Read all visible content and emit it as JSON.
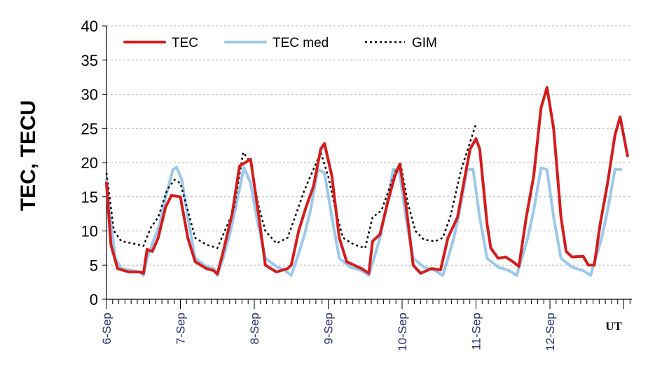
{
  "chart_data": {
    "type": "line",
    "title": "",
    "ylabel": "TEC, TECU",
    "xlabel": "UT",
    "ylim": [
      0,
      40
    ],
    "yticks": [
      0,
      5,
      10,
      15,
      20,
      25,
      30,
      35,
      40
    ],
    "x_unit": "days from 6-Sep 00 UT",
    "xlim": [
      0,
      7
    ],
    "categories": [
      "6-Sep",
      "7-Sep",
      "8-Sep",
      "9-Sep",
      "10-Sep",
      "11-Sep",
      "12-Sep"
    ],
    "grid": "horizontal dashed",
    "legend_position": "top-left",
    "series": [
      {
        "name": "TEC",
        "color": "#d41c1c",
        "style": "solid",
        "points": [
          [
            0,
            17
          ],
          [
            0.06,
            8
          ],
          [
            0.15,
            4.5
          ],
          [
            0.3,
            4
          ],
          [
            0.45,
            4
          ],
          [
            0.5,
            3.8
          ],
          [
            0.55,
            7.3
          ],
          [
            0.62,
            7
          ],
          [
            0.7,
            9
          ],
          [
            0.8,
            13.5
          ],
          [
            0.88,
            15.2
          ],
          [
            1.0,
            15
          ],
          [
            1.1,
            9
          ],
          [
            1.2,
            5.5
          ],
          [
            1.35,
            4.5
          ],
          [
            1.45,
            4.2
          ],
          [
            1.5,
            3.7
          ],
          [
            1.58,
            7
          ],
          [
            1.7,
            12.5
          ],
          [
            1.8,
            19.5
          ],
          [
            1.95,
            20.5
          ],
          [
            2.05,
            13
          ],
          [
            2.15,
            5
          ],
          [
            2.3,
            4
          ],
          [
            2.45,
            4.5
          ],
          [
            2.5,
            5
          ],
          [
            2.6,
            10
          ],
          [
            2.7,
            13.5
          ],
          [
            2.8,
            16.5
          ],
          [
            2.9,
            22
          ],
          [
            2.95,
            22.8
          ],
          [
            3.05,
            18
          ],
          [
            3.15,
            9
          ],
          [
            3.25,
            5.5
          ],
          [
            3.45,
            4.5
          ],
          [
            3.55,
            3.8
          ],
          [
            3.6,
            8.5
          ],
          [
            3.7,
            9.5
          ],
          [
            3.8,
            14
          ],
          [
            3.9,
            18
          ],
          [
            3.97,
            19.8
          ],
          [
            4.05,
            14
          ],
          [
            4.15,
            5
          ],
          [
            4.25,
            3.8
          ],
          [
            4.4,
            4.5
          ],
          [
            4.52,
            4.3
          ],
          [
            4.62,
            9
          ],
          [
            4.75,
            12
          ],
          [
            4.85,
            18
          ],
          [
            4.92,
            22
          ],
          [
            5.0,
            23.5
          ],
          [
            5.05,
            22
          ],
          [
            5.15,
            11
          ],
          [
            5.2,
            7.5
          ],
          [
            5.3,
            6
          ],
          [
            5.4,
            6.2
          ],
          [
            5.5,
            5.5
          ],
          [
            5.58,
            4.8
          ],
          [
            5.68,
            12
          ],
          [
            5.78,
            18
          ],
          [
            5.88,
            28
          ],
          [
            5.96,
            31
          ],
          [
            6.05,
            25
          ],
          [
            6.15,
            12
          ],
          [
            6.22,
            7
          ],
          [
            6.3,
            6.2
          ],
          [
            6.45,
            6.3
          ],
          [
            6.52,
            5
          ],
          [
            6.6,
            5
          ],
          [
            6.68,
            11
          ],
          [
            6.78,
            17
          ],
          [
            6.88,
            24
          ],
          [
            6.95,
            26.7
          ],
          [
            7.05,
            21
          ]
        ]
      },
      {
        "name": "TEC med",
        "color": "#9cc8ec",
        "style": "solid",
        "points": [
          [
            0,
            17.5
          ],
          [
            0.05,
            12
          ],
          [
            0.12,
            6
          ],
          [
            0.2,
            4.5
          ],
          [
            0.35,
            4.2
          ],
          [
            0.45,
            4
          ],
          [
            0.5,
            3.5
          ],
          [
            0.55,
            6
          ],
          [
            0.65,
            9
          ],
          [
            0.72,
            11
          ],
          [
            0.8,
            15
          ],
          [
            0.9,
            19
          ],
          [
            0.95,
            19.3
          ],
          [
            1.02,
            17.5
          ],
          [
            1.1,
            12
          ],
          [
            1.2,
            6
          ],
          [
            1.35,
            4.8
          ],
          [
            1.45,
            4.5
          ],
          [
            1.5,
            3.5
          ],
          [
            1.58,
            6
          ],
          [
            1.68,
            10
          ],
          [
            1.76,
            14
          ],
          [
            1.86,
            19.3
          ],
          [
            1.95,
            17
          ],
          [
            2.05,
            11
          ],
          [
            2.15,
            6
          ],
          [
            2.3,
            4.8
          ],
          [
            2.42,
            4.2
          ],
          [
            2.5,
            3.5
          ],
          [
            2.58,
            6
          ],
          [
            2.68,
            9.5
          ],
          [
            2.76,
            13
          ],
          [
            2.86,
            19
          ],
          [
            2.95,
            18.5
          ],
          [
            3.05,
            12
          ],
          [
            3.15,
            6
          ],
          [
            3.3,
            4.7
          ],
          [
            3.45,
            4.2
          ],
          [
            3.55,
            3.5
          ],
          [
            3.62,
            6
          ],
          [
            3.7,
            9
          ],
          [
            3.78,
            13
          ],
          [
            3.88,
            19
          ],
          [
            3.96,
            19
          ],
          [
            4.05,
            12
          ],
          [
            4.15,
            6
          ],
          [
            4.3,
            4.7
          ],
          [
            4.45,
            4.2
          ],
          [
            4.55,
            3.5
          ],
          [
            4.62,
            6
          ],
          [
            4.7,
            9
          ],
          [
            4.78,
            13
          ],
          [
            4.88,
            19
          ],
          [
            4.96,
            19
          ],
          [
            5.05,
            12
          ],
          [
            5.15,
            6
          ],
          [
            5.3,
            4.7
          ],
          [
            5.45,
            4.2
          ],
          [
            5.55,
            3.5
          ],
          [
            5.62,
            6
          ],
          [
            5.7,
            9
          ],
          [
            5.78,
            13
          ],
          [
            5.88,
            19.2
          ],
          [
            5.96,
            19
          ],
          [
            6.05,
            12
          ],
          [
            6.15,
            6
          ],
          [
            6.3,
            4.7
          ],
          [
            6.45,
            4.2
          ],
          [
            6.55,
            3.5
          ],
          [
            6.62,
            6
          ],
          [
            6.7,
            9
          ],
          [
            6.78,
            13
          ],
          [
            6.88,
            19
          ],
          [
            6.96,
            19
          ]
        ]
      },
      {
        "name": "GIM",
        "color": "#000000",
        "style": "dotted",
        "points": [
          [
            0,
            18.5
          ],
          [
            0.1,
            10
          ],
          [
            0.2,
            8.5
          ],
          [
            0.35,
            8.2
          ],
          [
            0.5,
            7.8
          ],
          [
            0.6,
            10.5
          ],
          [
            0.7,
            12
          ],
          [
            0.82,
            16
          ],
          [
            0.92,
            17.5
          ],
          [
            1.0,
            17
          ],
          [
            1.1,
            13
          ],
          [
            1.2,
            9
          ],
          [
            1.35,
            8
          ],
          [
            1.5,
            7.5
          ],
          [
            1.6,
            10
          ],
          [
            1.72,
            13
          ],
          [
            1.85,
            21.5
          ],
          [
            1.95,
            20
          ],
          [
            2.05,
            14
          ],
          [
            2.15,
            10
          ],
          [
            2.3,
            8.2
          ],
          [
            2.45,
            9
          ],
          [
            2.55,
            12
          ],
          [
            2.68,
            16
          ],
          [
            2.9,
            21.5
          ],
          [
            3.0,
            18
          ],
          [
            3.1,
            13
          ],
          [
            3.2,
            9
          ],
          [
            3.35,
            8
          ],
          [
            3.5,
            7.5
          ],
          [
            3.6,
            12
          ],
          [
            3.72,
            13
          ],
          [
            3.82,
            16
          ],
          [
            3.92,
            19
          ],
          [
            3.98,
            19.8
          ],
          [
            4.08,
            14
          ],
          [
            4.18,
            10
          ],
          [
            4.3,
            8.7
          ],
          [
            4.45,
            8.5
          ],
          [
            4.55,
            9
          ],
          [
            4.65,
            12
          ],
          [
            4.8,
            19
          ],
          [
            4.95,
            24
          ],
          [
            5.0,
            25.7
          ]
        ]
      }
    ]
  }
}
